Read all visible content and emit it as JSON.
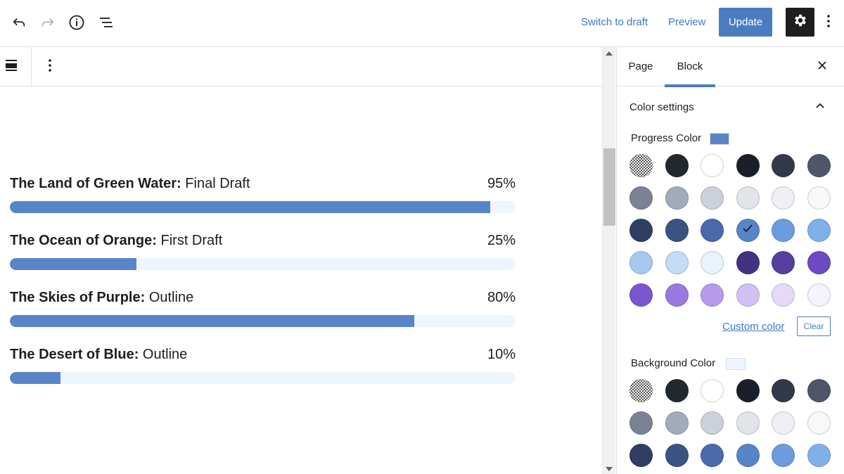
{
  "topbar": {
    "undo_icon": "undo-icon",
    "redo_icon": "redo-icon",
    "info_icon": "info-icon",
    "outline_icon": "list-view-icon",
    "switch_to_draft": "Switch to draft",
    "preview": "Preview",
    "update": "Update",
    "settings_icon": "gear-icon",
    "more_icon": "more-vertical-icon"
  },
  "block_toolbar": {
    "block_type_icon": "block-type-icon",
    "options_icon": "more-vertical-icon"
  },
  "progress_bars": [
    {
      "title_bold": "The Land of Green Water:",
      "title_rest": " Final Draft",
      "percent_label": "95%",
      "value": 95
    },
    {
      "title_bold": "The Ocean of Orange:",
      "title_rest": " First Draft",
      "percent_label": "25%",
      "value": 25
    },
    {
      "title_bold": "The Skies of Purple:",
      "title_rest": " Outline",
      "percent_label": "80%",
      "value": 80
    },
    {
      "title_bold": "The Desert of Blue:",
      "title_rest": " Outline",
      "percent_label": "10%",
      "value": 10
    }
  ],
  "sidebar": {
    "tabs": [
      {
        "label": "Page",
        "active": false
      },
      {
        "label": "Block",
        "active": true
      }
    ],
    "close_icon": "close-icon",
    "panel_title": "Color settings",
    "panel_chevron_icon": "chevron-up-icon",
    "progress_color": {
      "label": "Progress Color",
      "current": "#5885c8",
      "selected_index": 15
    },
    "background_color": {
      "label": "Background Color",
      "current": "#eef5fd"
    },
    "custom_color_label": "Custom color",
    "clear_label": "Clear",
    "palette": [
      "transparent",
      "#23282d",
      "#ffffff",
      "#1b1f2b",
      "#323a4a",
      "#4f566a",
      "#7a8296",
      "#a3abba",
      "#ccd1d9",
      "#e1e5ea",
      "#eef0f3",
      "#f7f8fa",
      "#2e3f63",
      "#3b5282",
      "#4a6aaa",
      "#5885c8",
      "#6b9ce0",
      "#80b0e8",
      "#a7c9ef",
      "#c4dcf5",
      "#eaf3fc",
      "#433281",
      "#55409f",
      "#6b4ac2",
      "#7a55d0",
      "#9a78e2",
      "#b69bec",
      "#d2bff4",
      "#e6daf8",
      "#f7f3fc"
    ]
  }
}
